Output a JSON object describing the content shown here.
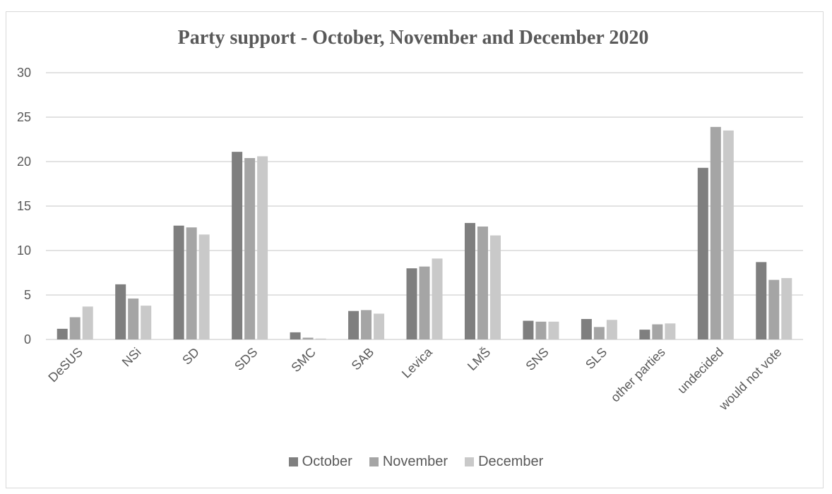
{
  "chart_data": {
    "type": "bar",
    "title": "Party support - October, November and December 2020",
    "xlabel": "",
    "ylabel": "",
    "ylim": [
      0,
      30
    ],
    "yticks": [
      0,
      5,
      10,
      15,
      20,
      25,
      30
    ],
    "grid": true,
    "legend_position": "bottom",
    "categories": [
      "DeSUS",
      "NSi",
      "SD",
      "SDS",
      "SMC",
      "SAB",
      "Levica",
      "LMŠ",
      "SNS",
      "SLS",
      "other parties",
      "undecided",
      "would not vote"
    ],
    "series": [
      {
        "name": "October",
        "color": "#7f7f7f",
        "values": [
          1.2,
          6.2,
          12.8,
          21.1,
          0.8,
          3.2,
          8.0,
          13.1,
          2.1,
          2.3,
          1.1,
          19.3,
          8.7
        ]
      },
      {
        "name": "November",
        "color": "#a5a5a5",
        "values": [
          2.5,
          4.6,
          12.6,
          20.4,
          0.2,
          3.3,
          8.2,
          12.7,
          2.0,
          1.4,
          1.7,
          23.9,
          6.7
        ]
      },
      {
        "name": "December",
        "color": "#c9c9c9",
        "values": [
          3.7,
          3.8,
          11.8,
          20.6,
          0.1,
          2.9,
          9.1,
          11.7,
          2.0,
          2.2,
          1.8,
          23.5,
          6.9
        ]
      }
    ]
  }
}
